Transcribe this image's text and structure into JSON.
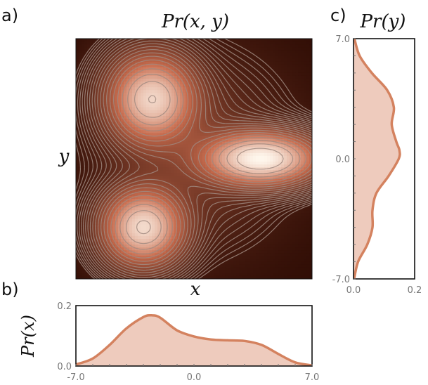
{
  "panels": {
    "a": {
      "label": "a)",
      "title": "Pr(x, y)",
      "xlabel": "x",
      "ylabel": "y"
    },
    "b": {
      "label": "b)",
      "ylabel": "Pr(x)"
    },
    "c": {
      "label": "c)",
      "title": "Pr(y)"
    }
  },
  "colors": {
    "curve": "#d4825f",
    "fill": "#eecbbd",
    "contour": "#a08a80",
    "heat_low": "#2e0c04",
    "heat_high": "#fff8ee"
  },
  "chart_data": [
    {
      "type": "heatmap",
      "panel": "a",
      "title": "Pr(x, y)",
      "xlabel": "x",
      "ylabel": "y",
      "xlim": [
        -7.0,
        7.0
      ],
      "ylim": [
        -7.0,
        7.0
      ],
      "contours": true,
      "components": [
        {
          "weight": 0.35,
          "mean": [
            -2.5,
            3.5
          ],
          "sd": [
            1.5,
            1.5
          ]
        },
        {
          "weight": 0.35,
          "mean": [
            4.0,
            0.0
          ],
          "sd": [
            2.0,
            0.9
          ]
        },
        {
          "weight": 0.3,
          "mean": [
            -3.0,
            -4.0
          ],
          "sd": [
            1.4,
            1.3
          ]
        },
        {
          "weight": 0.15,
          "mean": [
            0.0,
            0.5
          ],
          "sd": [
            3.0,
            3.0
          ]
        }
      ]
    },
    {
      "type": "area",
      "panel": "b",
      "ylabel": "Pr(x)",
      "xlim": [
        -7.0,
        7.0
      ],
      "ylim": [
        0.0,
        0.2
      ],
      "x_ticks": [
        "-7.0",
        "0.0",
        "7.0"
      ],
      "y_ticks": [
        "0.0",
        "0.2"
      ],
      "x": [
        -7,
        -6,
        -5,
        -4,
        -3,
        -2.5,
        -2,
        -1,
        0,
        1,
        2,
        3,
        4,
        5,
        6,
        7
      ],
      "y": [
        0.005,
        0.025,
        0.07,
        0.125,
        0.162,
        0.168,
        0.16,
        0.118,
        0.098,
        0.088,
        0.085,
        0.083,
        0.07,
        0.04,
        0.012,
        0.002
      ]
    },
    {
      "type": "area",
      "panel": "c",
      "title": "Pr(y)",
      "orientation": "vertical",
      "ylim": [
        -7.0,
        7.0
      ],
      "xlim": [
        0.0,
        0.2
      ],
      "y_ticks": [
        "-7.0",
        "0.0",
        "7.0"
      ],
      "x_ticks": [
        "0.0",
        "0.2"
      ],
      "y": [
        -7,
        -6,
        -5,
        -4,
        -3,
        -2,
        -1,
        0,
        0.5,
        1,
        2,
        3,
        4,
        5,
        6,
        7
      ],
      "x": [
        0.002,
        0.015,
        0.045,
        0.062,
        0.062,
        0.075,
        0.115,
        0.148,
        0.15,
        0.14,
        0.125,
        0.132,
        0.11,
        0.06,
        0.02,
        0.003
      ]
    }
  ]
}
